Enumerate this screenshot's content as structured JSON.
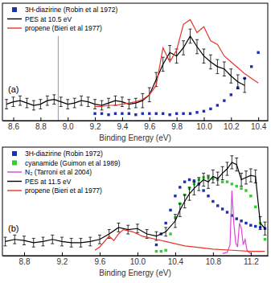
{
  "chart_data": [
    {
      "type": "line",
      "title": "(a)",
      "xlabel": "Binding Energy (eV)",
      "xlim": [
        8.52,
        10.47
      ],
      "ylim": [
        0,
        1
      ],
      "xticks": [
        8.6,
        8.8,
        {
          "value": 9,
          "label": "9.0"
        },
        9.2,
        9.4,
        9.6,
        9.8,
        {
          "value": 10,
          "label": "10.0"
        },
        10.2,
        10.4
      ],
      "tick_labels": "x",
      "legend": "upper left",
      "annotations": [
        {
          "x": 8.93,
          "y": [
            0,
            0.72
          ],
          "color": "#999999"
        }
      ],
      "series": [
        {
          "name": "3H-diazirine (Robin et al 1972)",
          "color": "#1f2fb0",
          "marker": "square",
          "line_style": "none",
          "x": [
            9.2,
            9.25,
            9.3,
            9.35,
            9.4,
            9.45,
            9.5,
            9.55,
            9.6,
            9.65,
            9.7,
            9.75,
            9.8,
            9.85,
            9.9,
            9.95,
            10.0,
            10.05,
            10.1,
            10.15,
            10.2,
            10.25,
            10.3,
            10.35,
            10.4
          ],
          "values": [
            0.06,
            0.06,
            0.05,
            0.06,
            0.06,
            0.06,
            0.05,
            0.06,
            0.06,
            0.06,
            0.06,
            0.05,
            0.06,
            0.06,
            0.06,
            0.07,
            0.08,
            0.1,
            0.13,
            0.17,
            0.22,
            0.28,
            0.36,
            0.46,
            0.58
          ]
        },
        {
          "name": "PES at 10.5 eV",
          "color": "#000000",
          "line_style": "solid",
          "x": [
            8.55,
            8.6,
            8.65,
            8.7,
            8.75,
            8.8,
            8.85,
            8.9,
            8.95,
            9.0,
            9.05,
            9.1,
            9.15,
            9.2,
            9.25,
            9.3,
            9.35,
            9.4,
            9.45,
            9.5,
            9.55,
            9.6,
            9.65,
            9.7,
            9.75,
            9.8,
            9.85,
            9.9,
            9.95,
            10.0,
            10.05,
            10.1,
            10.15,
            10.2,
            10.25,
            10.3
          ],
          "values": [
            0.14,
            0.16,
            0.17,
            0.15,
            0.13,
            0.14,
            0.17,
            0.18,
            0.16,
            0.14,
            0.15,
            0.17,
            0.16,
            0.14,
            0.13,
            0.15,
            0.17,
            0.16,
            0.14,
            0.15,
            0.17,
            0.22,
            0.35,
            0.48,
            0.58,
            0.55,
            0.62,
            0.72,
            0.63,
            0.55,
            0.5,
            0.46,
            0.44,
            0.38,
            0.33,
            0.3
          ],
          "errors": [
            0.04,
            0.04,
            0.04,
            0.04,
            0.04,
            0.04,
            0.04,
            0.04,
            0.04,
            0.04,
            0.04,
            0.04,
            0.04,
            0.04,
            0.04,
            0.04,
            0.04,
            0.04,
            0.04,
            0.04,
            0.06,
            0.06,
            0.06,
            0.06,
            0.06,
            0.06,
            0.06,
            0.06,
            0.06,
            0.06,
            0.06,
            0.06,
            0.06,
            0.06,
            0.06,
            0.06
          ]
        },
        {
          "name": "propene (Bieri et al 1977)",
          "color": "#e8352a",
          "line_style": "solid",
          "x": [
            9.2,
            9.25,
            9.3,
            9.35,
            9.4,
            9.45,
            9.5,
            9.55,
            9.6,
            9.65,
            9.7,
            9.75,
            9.8,
            9.85,
            9.9,
            9.95,
            10.0,
            10.05,
            10.1,
            10.15,
            10.2,
            10.25,
            10.3,
            10.35,
            10.4
          ],
          "values": [
            0.12,
            0.12,
            0.13,
            0.13,
            0.14,
            0.15,
            0.16,
            0.18,
            0.22,
            0.3,
            0.62,
            0.5,
            0.6,
            0.82,
            0.86,
            0.75,
            0.8,
            0.68,
            0.65,
            0.55,
            0.5,
            0.45,
            0.4,
            0.36,
            0.32
          ]
        }
      ]
    },
    {
      "type": "line",
      "title": "(b)",
      "xlabel": "Binding Energy (eV)",
      "xlim": [
        8.57,
        11.38
      ],
      "ylim": [
        0,
        1
      ],
      "xticks": [
        8.8,
        9.2,
        9.6,
        {
          "value": 10,
          "label": "10.0"
        },
        10.4,
        10.8,
        11.2
      ],
      "tick_labels": "x",
      "legend": "upper left",
      "series": [
        {
          "name": "3H-diazirine (Robin 1972)",
          "color": "#1f2fb0",
          "marker": "square",
          "line_style": "none",
          "x": [
            10.2,
            10.25,
            10.3,
            10.35,
            10.4,
            10.45,
            10.5,
            10.55,
            10.6,
            10.65,
            10.7,
            10.75,
            10.8,
            10.85,
            10.9,
            10.95,
            11.0,
            11.05,
            11.1,
            11.15,
            11.2,
            11.25,
            11.3,
            11.35
          ],
          "values": [
            0.1,
            0.2,
            0.3,
            0.42,
            0.55,
            0.63,
            0.68,
            0.7,
            0.69,
            0.66,
            0.6,
            0.55,
            0.5,
            0.46,
            0.43,
            0.4,
            0.37,
            0.34,
            0.32,
            0.3,
            0.28,
            0.27,
            0.26,
            0.25
          ]
        },
        {
          "name": "cyanamide (Guimon et al 1989)",
          "color": "#33cc33",
          "marker": "square",
          "line_style": "none",
          "x": [
            10.2,
            10.25,
            10.3,
            10.35,
            10.4,
            10.45,
            10.5,
            10.55,
            10.6,
            10.65,
            10.7,
            10.75,
            10.8,
            10.85,
            10.9,
            10.95,
            11.0,
            11.05,
            11.1,
            11.15,
            11.2,
            11.25,
            11.3,
            11.35
          ],
          "values": [
            0.04,
            0.04,
            0.05,
            0.2,
            0.35,
            0.48,
            0.56,
            0.62,
            0.66,
            0.7,
            0.72,
            0.72,
            0.71,
            0.7,
            0.68,
            0.68,
            0.66,
            0.64,
            0.62,
            0.6,
            0.55,
            0.45,
            0.3,
            0.15
          ]
        },
        {
          "name": "N₂ (Tarroni et al 2004)",
          "color": "#d946d9",
          "line_style": "solid",
          "x": [
            10.9,
            10.95,
            10.98,
            11.0,
            11.02,
            11.04,
            11.06,
            11.08,
            11.1,
            11.12,
            11.14,
            11.16,
            11.18,
            11.2
          ],
          "values": [
            0.02,
            0.03,
            0.1,
            0.6,
            0.3,
            0.12,
            0.08,
            0.3,
            0.25,
            0.1,
            0.15,
            0.05,
            0.03,
            0.02
          ]
        },
        {
          "name": "PES at 11.5 eV",
          "color": "#000000",
          "line_style": "solid",
          "x": [
            8.6,
            8.7,
            8.8,
            8.9,
            9.0,
            9.1,
            9.2,
            9.3,
            9.4,
            9.5,
            9.6,
            9.7,
            9.8,
            9.9,
            10.0,
            10.1,
            10.2,
            10.3,
            10.4,
            10.45,
            10.5,
            10.55,
            10.6,
            10.65,
            10.7,
            10.75,
            10.8,
            10.85,
            10.9,
            10.95,
            11.0,
            11.05,
            11.1,
            11.15,
            11.2,
            11.25,
            11.3,
            11.35
          ],
          "values": [
            0.13,
            0.15,
            0.14,
            0.12,
            0.13,
            0.15,
            0.13,
            0.12,
            0.12,
            0.13,
            0.15,
            0.2,
            0.26,
            0.24,
            0.25,
            0.2,
            0.18,
            0.22,
            0.32,
            0.42,
            0.5,
            0.57,
            0.62,
            0.66,
            0.7,
            0.68,
            0.73,
            0.71,
            0.76,
            0.8,
            0.86,
            0.84,
            0.7,
            0.72,
            0.74,
            0.73,
            0.3,
            0.25
          ],
          "errors": [
            0.04,
            0.04,
            0.04,
            0.04,
            0.04,
            0.04,
            0.04,
            0.04,
            0.04,
            0.04,
            0.04,
            0.04,
            0.04,
            0.04,
            0.04,
            0.04,
            0.04,
            0.04,
            0.06,
            0.06,
            0.06,
            0.06,
            0.06,
            0.06,
            0.06,
            0.06,
            0.06,
            0.06,
            0.06,
            0.06,
            0.06,
            0.06,
            0.06,
            0.06,
            0.06,
            0.06,
            0.06,
            0.06
          ]
        },
        {
          "name": "propene (Bieri et al 1977)",
          "color": "#e8352a",
          "line_style": "solid",
          "x": [
            9.55,
            9.6,
            9.7,
            9.75,
            9.8,
            9.85,
            9.9,
            9.95,
            10.0,
            10.05,
            10.1,
            10.2,
            10.3,
            10.4,
            10.5,
            10.6,
            10.8,
            11.0,
            11.2,
            11.35
          ],
          "values": [
            0.05,
            0.08,
            0.18,
            0.14,
            0.2,
            0.24,
            0.23,
            0.22,
            0.2,
            0.18,
            0.17,
            0.15,
            0.13,
            0.11,
            0.09,
            0.08,
            0.06,
            0.05,
            0.04,
            0.04
          ]
        }
      ]
    }
  ]
}
